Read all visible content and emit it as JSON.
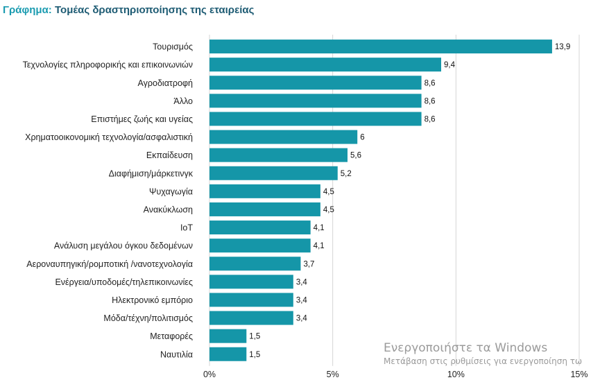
{
  "title": {
    "prefix": "Γράφημα:",
    "text": "Τομέας δραστηριοποίησης της εταιρείας"
  },
  "chart_data": {
    "type": "bar",
    "orientation": "horizontal",
    "title": "Γράφημα: Τομέας δραστηριοποίησης της εταιρείας",
    "categories": [
      "Τουρισμός",
      "Τεχνολογίες πληροφορικής και επικοινωνιών",
      "Αγροδιατροφή",
      "Άλλο",
      "Επιστήμες ζωής και υγείας",
      "Χρηματοοικονομική τεχνολογία/ασφαλιστική",
      "Εκπαίδευση",
      "Διαφήμιση/μάρκετινγκ",
      "Ψυχαγωγία",
      "Ανακύκλωση",
      "IoT",
      "Ανάλυση μεγάλου όγκου δεδομένων",
      "Αεροναυπηγική/ρομποτική /νανοτεχνολογία",
      "Ενέργεια/υποδομές/τηλεπικοινωνίες",
      "Ηλεκτρονικό εμπόριο",
      "Μόδα/τέχνη/πολιτισμός",
      "Μεταφορές",
      "Ναυτιλία"
    ],
    "values": [
      13.9,
      9.4,
      8.6,
      8.6,
      8.6,
      6,
      5.6,
      5.2,
      4.5,
      4.5,
      4.1,
      4.1,
      3.7,
      3.4,
      3.4,
      3.4,
      1.5,
      1.5
    ],
    "value_labels": [
      "13,9",
      "9,4",
      "8,6",
      "8,6",
      "8,6",
      "6",
      "5,6",
      "5,2",
      "4,5",
      "4,5",
      "4,1",
      "4,1",
      "3,7",
      "3,4",
      "3,4",
      "3,4",
      "1,5",
      "1,5"
    ],
    "xlim": [
      0,
      15
    ],
    "x_ticks": [
      0,
      5,
      10,
      15
    ],
    "x_tick_labels": [
      "0%",
      "5%",
      "10%",
      "15%"
    ],
    "grid": "vertical",
    "bar_color": "#1596a8",
    "grid_color": "#d4d4d4"
  },
  "watermark": {
    "line1": "Ενεργοποιήστε τα Windows",
    "line2": "Μετάβαση στις ρυθμίσεις για ενεργοποίηση τω"
  }
}
